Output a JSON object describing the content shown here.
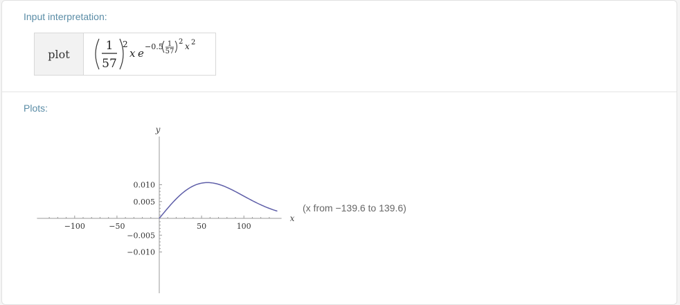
{
  "pods": {
    "input": {
      "title": "Input interpretation:",
      "label": "plot",
      "expression": {
        "frac_num": "1",
        "frac_den": "57",
        "outer_exp": "2",
        "var": "x",
        "e": "e",
        "exp_coef": "−0.5",
        "exp_frac_num": "1",
        "exp_frac_den": "57",
        "exp_inner_power": "2",
        "exp_var": "x",
        "exp_var_power": "2"
      }
    },
    "plots": {
      "title": "Plots:",
      "range_note": "(x from −139.6 to 139.6)"
    }
  },
  "chart_data": {
    "type": "line",
    "xlabel": "x",
    "ylabel": "y",
    "xlim": [
      -139.6,
      139.6
    ],
    "ylim": [
      -0.0108,
      0.0108
    ],
    "x_ticks": [
      -100,
      -50,
      50,
      100
    ],
    "x_tick_labels": [
      "−100",
      "−50",
      "50",
      "100"
    ],
    "y_ticks": [
      0.01,
      0.005,
      -0.005,
      -0.01
    ],
    "y_tick_labels": [
      "0.010",
      "0.005",
      "−0.005",
      "−0.010"
    ],
    "series": [
      {
        "color": "#5e5ea8",
        "x": [
          0,
          10,
          20,
          30,
          40,
          50,
          57,
          60,
          70,
          80,
          90,
          100,
          110,
          120,
          130,
          139.6
        ],
        "y": [
          0,
          0.00303,
          0.00573,
          0.0078,
          0.00915,
          0.00976,
          0.00982,
          0.0098,
          0.00946,
          0.00877,
          0.00779,
          0.00668,
          0.00555,
          0.00445,
          0.00348,
          0.0027
        ]
      }
    ],
    "grid": false
  }
}
